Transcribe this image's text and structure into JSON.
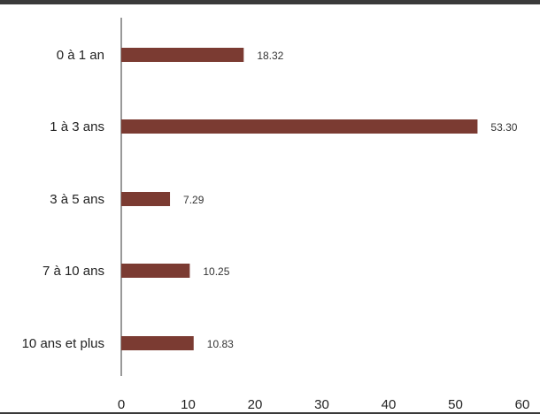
{
  "chart_data": {
    "type": "bar",
    "orientation": "horizontal",
    "categories": [
      "0 à 1 an",
      "1 à 3 ans",
      "3 à 5 ans",
      "7 à 10 ans",
      "10 ans et plus"
    ],
    "values": [
      18.32,
      53.3,
      7.29,
      10.25,
      10.83
    ],
    "value_labels": [
      "18.32",
      "53.30",
      "7.29",
      "10.25",
      "10.83"
    ],
    "xlim": [
      0,
      60
    ],
    "xticks": [
      0,
      10,
      20,
      30,
      40,
      50,
      60
    ],
    "xtick_labels": [
      "0",
      "10",
      "20",
      "30",
      "40",
      "50",
      "60"
    ],
    "grid": false,
    "bar_color": "#7b3b32"
  }
}
